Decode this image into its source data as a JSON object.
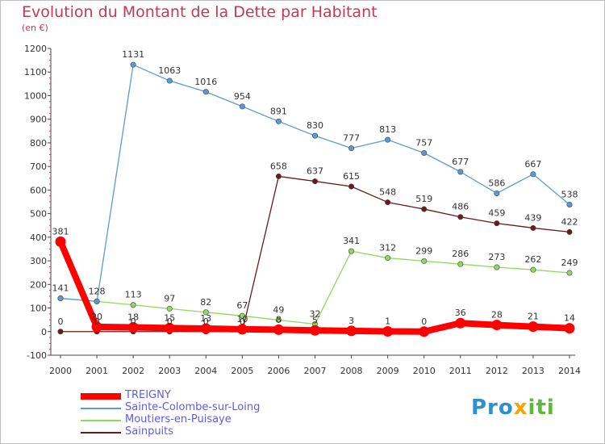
{
  "title": "Evolution du Montant de la Dette par Habitant",
  "subtitle": "(en €)",
  "brand": {
    "part1": "Pro",
    "part2": "x",
    "part3": "iti"
  },
  "chart_data": {
    "type": "line",
    "x": [
      "2000",
      "2001",
      "2002",
      "2003",
      "2004",
      "2005",
      "2006",
      "2007",
      "2008",
      "2009",
      "2010",
      "2011",
      "2012",
      "2013",
      "2014"
    ],
    "ylim": [
      -100,
      1200
    ],
    "yticks": [
      -100,
      0,
      100,
      200,
      300,
      400,
      500,
      600,
      700,
      800,
      900,
      1000,
      1100,
      1200
    ],
    "grid": false,
    "legend_position": "bottom-left",
    "series": [
      {
        "name": "TREIGNY",
        "color": "#ff0000",
        "values": [
          381,
          20,
          18,
          15,
          13,
          10,
          8,
          5,
          3,
          1,
          0,
          36,
          28,
          21,
          14
        ]
      },
      {
        "name": "Sainte-Colombe-sur-Loing",
        "color": "#5b9bd5",
        "values": [
          141,
          128,
          1131,
          1063,
          1016,
          954,
          891,
          830,
          777,
          813,
          757,
          677,
          586,
          667,
          538
        ]
      },
      {
        "name": "Moutiers-en-Puisaye",
        "color": "#90d860",
        "values": [
          141,
          128,
          113,
          97,
          82,
          67,
          49,
          32,
          341,
          312,
          299,
          286,
          273,
          262,
          249
        ]
      },
      {
        "name": "Sainpuits",
        "color": "#6b1a1a",
        "values": [
          0,
          0,
          0,
          0,
          0,
          0,
          658,
          637,
          615,
          548,
          519,
          486,
          459,
          439,
          422
        ]
      }
    ],
    "data_labels": [
      {
        "series": 0,
        "labels": [
          "381",
          "20",
          "18",
          "15",
          "13",
          "10",
          "8",
          "5",
          "3",
          "1",
          "0",
          "36",
          "28",
          "21",
          "14"
        ]
      },
      {
        "series": 1,
        "labels": [
          "",
          "",
          "1131",
          "1063",
          "1016",
          "954",
          "891",
          "830",
          "777",
          "813",
          "757",
          "677",
          "586",
          "667",
          "538"
        ]
      },
      {
        "series": 2,
        "labels": [
          "141",
          "128",
          "113",
          "97",
          "82",
          "67",
          "49",
          "32",
          "341",
          "312",
          "299",
          "286",
          "273",
          "262",
          "249"
        ]
      },
      {
        "series": 3,
        "labels": [
          "0",
          "0",
          "0",
          "0",
          "0",
          "0",
          "658",
          "637",
          "615",
          "548",
          "519",
          "486",
          "459",
          "439",
          "422"
        ]
      }
    ]
  }
}
